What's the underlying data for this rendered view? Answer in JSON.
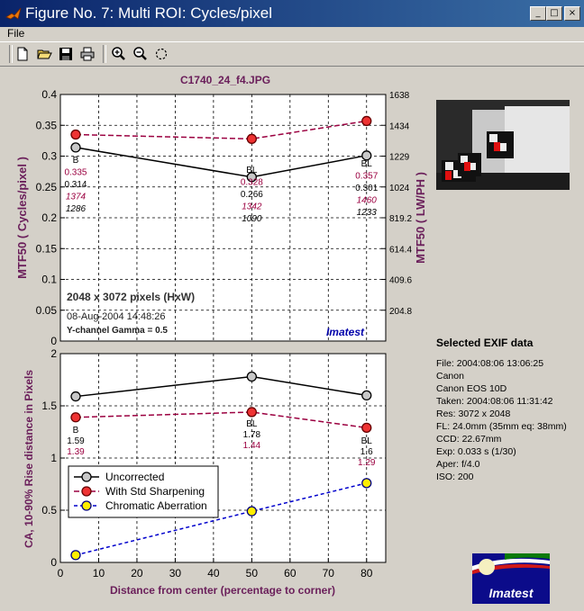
{
  "window": {
    "title": "Figure No. 7: Multi ROI: Cycles/pixel",
    "minimize_glyph": "_",
    "maximize_glyph": "□",
    "close_glyph": "×"
  },
  "menu": {
    "file_label": "File"
  },
  "toolbar": {
    "icons": [
      "new-file-icon",
      "open-folder-icon",
      "save-icon",
      "print-icon",
      "zoom-in-icon",
      "zoom-out-icon",
      "rotate-icon"
    ]
  },
  "figure": {
    "filename_title": "C1740_24_f4.JPG",
    "colors": {
      "uncorrected": "#000000",
      "sharpened": "#9b0040",
      "sharpened_marker": "#ee3333",
      "ca": "#0000cc",
      "ca_marker": "#ffee00",
      "label_purple": "#6a1e5a",
      "brand_blue": "#0000aa"
    },
    "info": {
      "pixels": "2048 x 3072 pixels (HxW)",
      "date": "08-Aug-2004 14:48:26",
      "channel": "Y-channel   Gamma = 0.5",
      "brand": "Imatest"
    },
    "exif": {
      "title": "Selected EXIF data",
      "lines": [
        "File:  2004:08:06 13:06:25",
        "Canon",
        "Canon EOS 10D",
        "Taken:  2004:08:06 11:31:42",
        "Res:    3072 x 2048",
        "FL:  24.0mm  (35mm eq: 38mm)",
        "CCD:    22.67mm",
        "Exp:    0.033 s  (1/30)",
        "Aper:  f/4.0",
        "ISO:    200"
      ]
    },
    "logo_text": "Imatest"
  },
  "chart_data": [
    {
      "type": "line",
      "ylabel": "MTF50 ( Cycles/pixel )",
      "y2label": "MTF50 ( LW/PH )",
      "ylim": [
        0,
        0.4
      ],
      "xlim": [
        0,
        85
      ],
      "y_ticks": [
        "0",
        "0.05",
        "0.1",
        "0.15",
        "0.2",
        "0.25",
        "0.3",
        "0.35",
        "0.4"
      ],
      "y2_ticks": [
        "204.8",
        "409.6",
        "614.4",
        "819.2",
        "1024",
        "1229",
        "1434",
        "1638"
      ],
      "grid": true,
      "x": [
        4,
        50,
        80
      ],
      "series": [
        {
          "key": "uncorrected",
          "values": [
            0.314,
            0.266,
            0.301
          ]
        },
        {
          "key": "sharpened",
          "values": [
            0.335,
            0.328,
            0.357
          ]
        }
      ],
      "annotations": [
        {
          "x": 4,
          "lines": [
            {
              "text": "B",
              "color": "black",
              "italic": false
            },
            {
              "text": "0.335",
              "color": "purple",
              "italic": false
            },
            {
              "text": "0.314",
              "color": "black",
              "italic": false
            },
            {
              "text": "1374",
              "color": "purple",
              "italic": true
            },
            {
              "text": "1286",
              "color": "black",
              "italic": true
            }
          ]
        },
        {
          "x": 50,
          "lines": [
            {
              "text": "BL",
              "color": "black",
              "italic": false
            },
            {
              "text": "0.328",
              "color": "purple",
              "italic": false
            },
            {
              "text": "0.266",
              "color": "black",
              "italic": false
            },
            {
              "text": "1342",
              "color": "purple",
              "italic": true
            },
            {
              "text": "1090",
              "color": "black",
              "italic": true
            }
          ]
        },
        {
          "x": 80,
          "lines": [
            {
              "text": "BL",
              "color": "black",
              "italic": false
            },
            {
              "text": "0.357",
              "color": "purple",
              "italic": false
            },
            {
              "text": "0.301",
              "color": "black",
              "italic": false
            },
            {
              "text": "1460",
              "color": "purple",
              "italic": true
            },
            {
              "text": "1233",
              "color": "black",
              "italic": true
            }
          ]
        }
      ]
    },
    {
      "type": "line",
      "xlabel": "Distance from center (percentage to corner)",
      "ylabel": "CA, 10-90% Rise distance in Pixels",
      "ylim": [
        0,
        2
      ],
      "xlim": [
        0,
        85
      ],
      "x_ticks": [
        "0",
        "10",
        "20",
        "30",
        "40",
        "50",
        "60",
        "70",
        "80"
      ],
      "y_ticks": [
        "0",
        "0.5",
        "1",
        "1.5",
        "2"
      ],
      "grid": true,
      "x": [
        4,
        50,
        80
      ],
      "series": [
        {
          "key": "uncorrected",
          "name": "Uncorrected",
          "values": [
            1.59,
            1.78,
            1.6
          ]
        },
        {
          "key": "sharpened",
          "name": "With Std Sharpening",
          "values": [
            1.39,
            1.44,
            1.29
          ]
        },
        {
          "key": "ca",
          "name": "Chromatic Aberration",
          "values": [
            0.07,
            0.49,
            0.76
          ]
        }
      ],
      "legend": "lower-left",
      "annotations": [
        {
          "x": 4,
          "lines": [
            {
              "text": "B",
              "color": "black"
            },
            {
              "text": "1.59",
              "color": "black"
            },
            {
              "text": "1.39",
              "color": "purple"
            }
          ]
        },
        {
          "x": 50,
          "lines": [
            {
              "text": "BL",
              "color": "black"
            },
            {
              "text": "1.78",
              "color": "black"
            },
            {
              "text": "1.44",
              "color": "purple"
            }
          ]
        },
        {
          "x": 80,
          "lines": [
            {
              "text": "BL",
              "color": "black"
            },
            {
              "text": "1.6",
              "color": "black"
            },
            {
              "text": "1.29",
              "color": "purple"
            }
          ]
        }
      ]
    }
  ]
}
